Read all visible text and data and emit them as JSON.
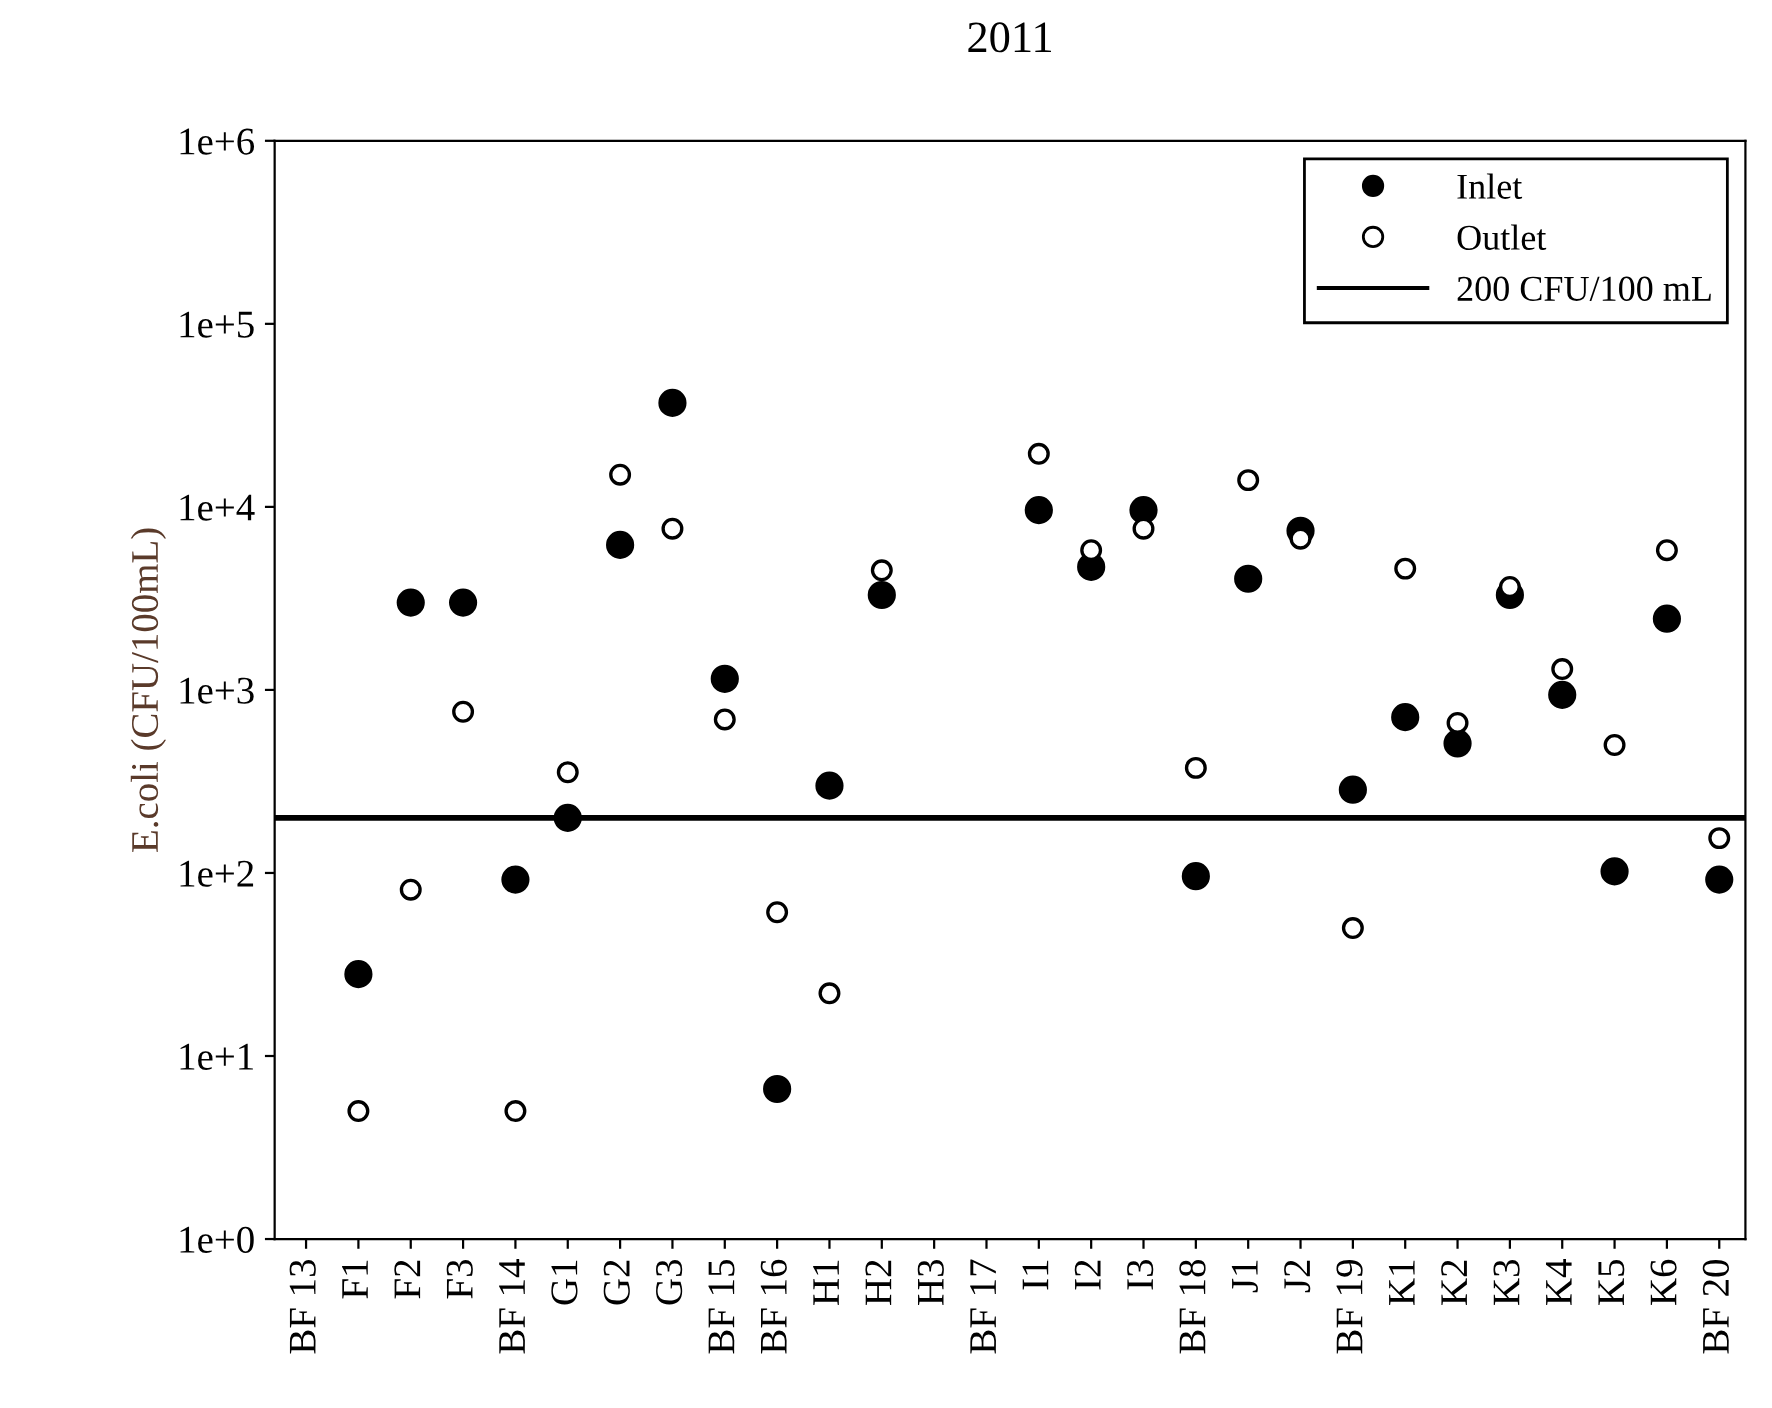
{
  "chart_data": {
    "type": "scatter",
    "title": "2011",
    "ylabel": "E.coli (CFU/100mL)",
    "categories": [
      "BF 13",
      "F1",
      "F2",
      "F3",
      "BF 14",
      "G1",
      "G2",
      "G3",
      "BF 15",
      "BF 16",
      "H1",
      "H2",
      "H3",
      "BF 17",
      "I1",
      "I2",
      "I3",
      "BF 18",
      "J1",
      "J2",
      "BF 19",
      "K1",
      "K2",
      "K3",
      "K4",
      "K5",
      "K6",
      "BF 20"
    ],
    "series": [
      {
        "name": "Inlet",
        "color": "#000000",
        "marker": "circle",
        "values": [
          null,
          28,
          3000,
          3000,
          92,
          200,
          6200,
          37000,
          1150,
          6.6,
          300,
          3300,
          null,
          null,
          9600,
          4700,
          9600,
          96,
          4050,
          7400,
          285,
          710,
          510,
          3300,
          940,
          102,
          2450,
          92
        ]
      },
      {
        "name": "Outlet",
        "color": "#ffffff",
        "marker": "circle",
        "values": [
          null,
          5,
          81,
          760,
          5,
          355,
          15000,
          7600,
          690,
          61,
          22,
          4500,
          null,
          null,
          19500,
          5800,
          7600,
          375,
          14000,
          6700,
          50,
          4600,
          660,
          3650,
          1300,
          500,
          5800,
          155
        ]
      }
    ],
    "log": "y",
    "ylim": [
      1,
      1000000
    ],
    "yticks": [
      {
        "value": 1,
        "label": "1e+0"
      },
      {
        "value": 10,
        "label": "1e+1"
      },
      {
        "value": 100,
        "label": "1e+2"
      },
      {
        "value": 1000,
        "label": "1e+3"
      },
      {
        "value": 10000,
        "label": "1e+4"
      },
      {
        "value": 100000,
        "label": "1e+5"
      },
      {
        "value": 1000000,
        "label": "1e+6"
      }
    ],
    "ref_lines": [
      {
        "axis": "y",
        "value": 200,
        "label": "200 CFU/100 mL",
        "color": "#000000",
        "line_style": "solid"
      }
    ],
    "grid": false,
    "legend": "top right"
  }
}
